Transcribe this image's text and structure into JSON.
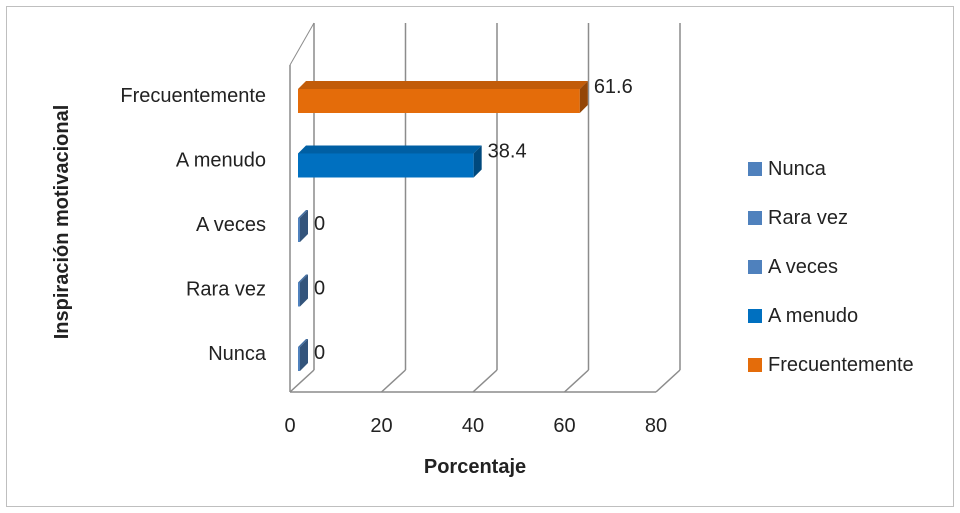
{
  "chart_data": {
    "type": "bar",
    "orientation": "horizontal",
    "style": "3d",
    "title": "",
    "xlabel": "Porcentaje",
    "ylabel": "Inspiración motivacional",
    "xlim": [
      0,
      80
    ],
    "xticks": [
      0,
      20,
      40,
      60,
      80
    ],
    "categories": [
      "Nunca",
      "Rara vez",
      "A veces",
      "A menudo",
      "Frecuentemente"
    ],
    "values": [
      0,
      0,
      0,
      38.4,
      61.6
    ],
    "data_labels": [
      "0",
      "0",
      "0",
      "38.4",
      "61.6"
    ],
    "colors": [
      "#4f81bd",
      "#4f81bd",
      "#4f81bd",
      "#0070c0",
      "#e46c0a"
    ],
    "grid": true,
    "legend": {
      "position": "right",
      "entries": [
        "Nunca",
        "Rara vez",
        "A veces",
        "A menudo",
        "Frecuentemente"
      ]
    }
  }
}
